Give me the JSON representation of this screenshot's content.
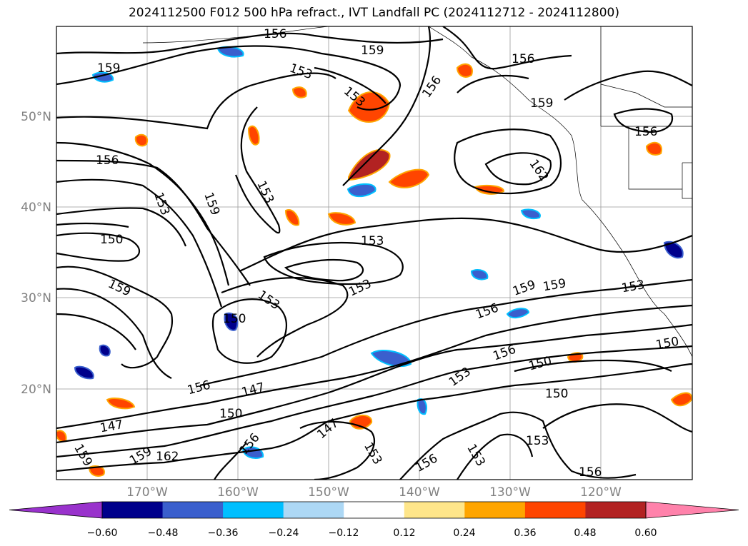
{
  "title": "2024112500 F012 500 hPa refract., IVT Landfall PC (2024112712 - 2024112800)",
  "lat_labels": [
    "50°N",
    "40°N",
    "30°N",
    "20°N"
  ],
  "lon_labels": [
    "170°W",
    "160°W",
    "150°W",
    "140°W",
    "130°W",
    "120°W"
  ],
  "colorbar": {
    "tick_labels": [
      "−0.60",
      "−0.48",
      "−0.36",
      "−0.24",
      "−0.12",
      "0.12",
      "0.24",
      "0.36",
      "0.48",
      "0.60"
    ],
    "colors": [
      "#9932cc",
      "#00008b",
      "#3a5fcd",
      "#00bfff",
      "#add8f5",
      "#ffffff",
      "#ffe68a",
      "#ffa500",
      "#ff4500",
      "#b22222",
      "#ff82ab"
    ]
  },
  "contour_labels": [
    "156",
    "159",
    "153",
    "153",
    "156",
    "156",
    "159",
    "159",
    "156",
    "153",
    "153",
    "159",
    "162",
    "156",
    "153",
    "150",
    "159",
    "153",
    "153",
    "159",
    "156",
    "159",
    "153",
    "150",
    "156",
    "150",
    "153",
    "150",
    "156",
    "147",
    "150",
    "147",
    "147",
    "150",
    "162",
    "159",
    "153",
    "156",
    "153",
    "156",
    "153",
    "156",
    "159"
  ]
}
